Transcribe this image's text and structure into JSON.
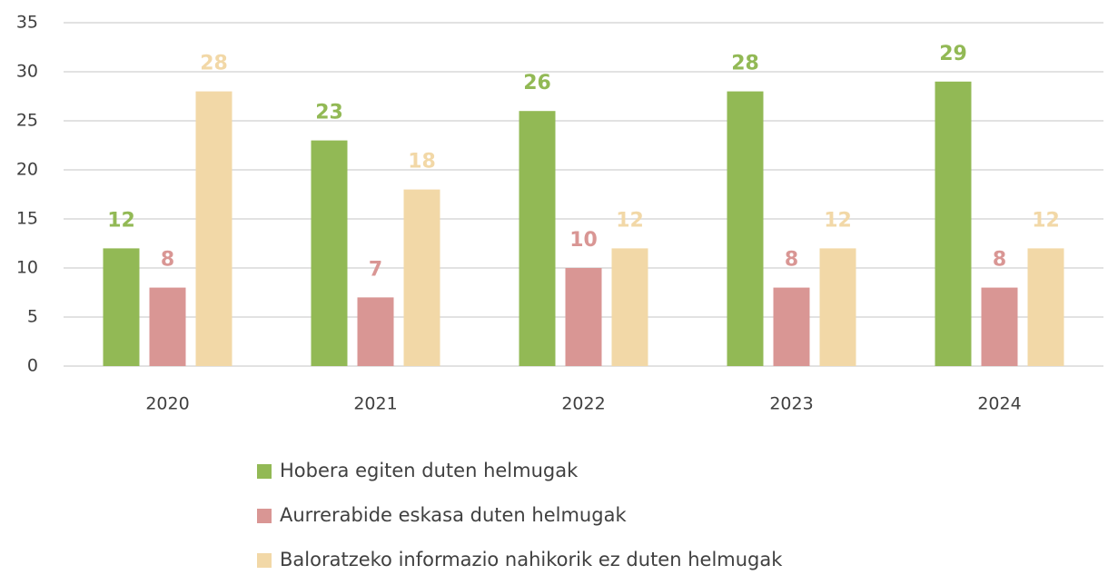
{
  "chart_data": {
    "type": "bar",
    "categories": [
      "2020",
      "2021",
      "2022",
      "2023",
      "2024"
    ],
    "series": [
      {
        "name": "Hobera egiten duten helmugak",
        "color": "#92b955",
        "values": [
          12,
          23,
          26,
          28,
          29
        ]
      },
      {
        "name": "Aurrerabide eskasa duten helmugak",
        "color": "#d99694",
        "values": [
          8,
          7,
          10,
          8,
          8
        ]
      },
      {
        "name": "Baloratzeko informazio nahikorik ez duten helmugak",
        "color": "#f2d8a7",
        "values": [
          28,
          18,
          12,
          12,
          12
        ]
      }
    ],
    "ylim": [
      0,
      35
    ],
    "yticks": [
      0,
      5,
      10,
      15,
      20,
      25,
      30,
      35
    ],
    "grid": true,
    "legend": "bottom"
  }
}
